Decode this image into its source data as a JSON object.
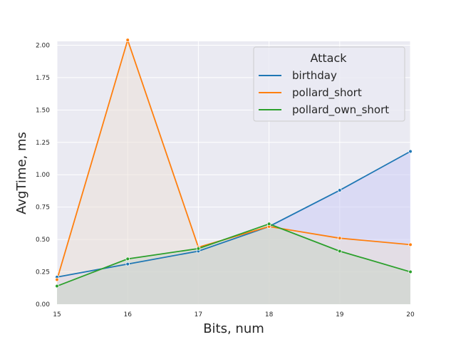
{
  "chart_data": {
    "type": "line",
    "title": "",
    "xlabel": "Bits, num",
    "ylabel": "AvgTime, ms",
    "x": [
      15,
      16,
      17,
      18,
      19,
      20
    ],
    "x_ticks": [
      "15",
      "16",
      "17",
      "18",
      "19",
      "20"
    ],
    "y_ticks": [
      "0.00",
      "0.25",
      "0.50",
      "0.75",
      "1.00",
      "1.25",
      "1.50",
      "1.75",
      "2.00"
    ],
    "xlim": [
      15,
      20
    ],
    "ylim": [
      0,
      2.03
    ],
    "grid": true,
    "legend": {
      "title": "Attack",
      "position": "top-right"
    },
    "series": [
      {
        "name": "birthday",
        "values": [
          0.21,
          0.31,
          0.41,
          0.6,
          0.88,
          1.18
        ],
        "color": "#1f77b4",
        "fill": "#c9c9f5"
      },
      {
        "name": "pollard_short",
        "values": [
          0.19,
          2.04,
          0.44,
          0.6,
          0.51,
          0.46
        ],
        "color": "#ff7f0e",
        "fill": "#ecdfd6"
      },
      {
        "name": "pollard_own_short",
        "values": [
          0.14,
          0.35,
          0.43,
          0.62,
          0.41,
          0.25
        ],
        "color": "#2ca02c",
        "fill": "#c8d3c5"
      }
    ]
  }
}
